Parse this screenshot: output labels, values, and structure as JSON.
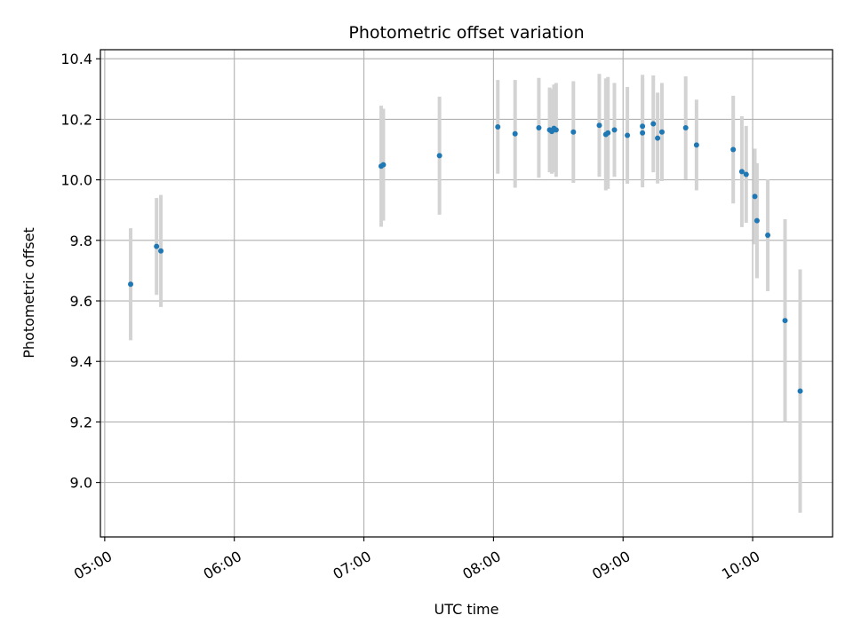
{
  "chart_data": {
    "type": "scatter",
    "title": "Photometric offset variation",
    "xlabel": "UTC time",
    "ylabel": "Photometric offset",
    "x_ticks": [
      "05:00",
      "06:00",
      "07:00",
      "08:00",
      "09:00",
      "10:00"
    ],
    "y_ticks": [
      "9.0",
      "9.2",
      "9.4",
      "9.6",
      "9.8",
      "10.0",
      "10.2",
      "10.4"
    ],
    "xlim": [
      "04:58",
      "10:37"
    ],
    "ylim": [
      8.82,
      10.43
    ],
    "grid": true,
    "colors": {
      "point": "#1f77b4",
      "errorbar": "#d3d3d3",
      "grid": "#b0b0b0"
    },
    "points": [
      {
        "t": "05:12",
        "y": 9.655,
        "err": 0.185
      },
      {
        "t": "05:24",
        "y": 9.78,
        "err": 0.16
      },
      {
        "t": "05:26",
        "y": 9.765,
        "err": 0.185
      },
      {
        "t": "07:08",
        "y": 10.045,
        "err": 0.2
      },
      {
        "t": "07:09",
        "y": 10.05,
        "err": 0.185
      },
      {
        "t": "07:35",
        "y": 10.08,
        "err": 0.195
      },
      {
        "t": "08:02",
        "y": 10.175,
        "err": 0.155
      },
      {
        "t": "08:10",
        "y": 10.152,
        "err": 0.178
      },
      {
        "t": "08:21",
        "y": 10.172,
        "err": 0.165
      },
      {
        "t": "08:26",
        "y": 10.165,
        "err": 0.14
      },
      {
        "t": "08:27",
        "y": 10.16,
        "err": 0.14
      },
      {
        "t": "08:28",
        "y": 10.17,
        "err": 0.145
      },
      {
        "t": "08:29",
        "y": 10.165,
        "err": 0.155
      },
      {
        "t": "08:37",
        "y": 10.158,
        "err": 0.168
      },
      {
        "t": "08:49",
        "y": 10.18,
        "err": 0.17
      },
      {
        "t": "08:52",
        "y": 10.15,
        "err": 0.185
      },
      {
        "t": "08:53",
        "y": 10.155,
        "err": 0.185
      },
      {
        "t": "08:56",
        "y": 10.165,
        "err": 0.155
      },
      {
        "t": "09:02",
        "y": 10.147,
        "err": 0.16
      },
      {
        "t": "09:09",
        "y": 10.155,
        "err": 0.18
      },
      {
        "t": "09:09",
        "y": 10.177,
        "err": 0.17
      },
      {
        "t": "09:14",
        "y": 10.185,
        "err": 0.16
      },
      {
        "t": "09:16",
        "y": 10.138,
        "err": 0.15
      },
      {
        "t": "09:18",
        "y": 10.158,
        "err": 0.162
      },
      {
        "t": "09:29",
        "y": 10.172,
        "err": 0.17
      },
      {
        "t": "09:34",
        "y": 10.115,
        "err": 0.15
      },
      {
        "t": "09:51",
        "y": 10.1,
        "err": 0.178
      },
      {
        "t": "09:55",
        "y": 10.027,
        "err": 0.183
      },
      {
        "t": "09:57",
        "y": 10.018,
        "err": 0.16
      },
      {
        "t": "10:01",
        "y": 9.945,
        "err": 0.158
      },
      {
        "t": "10:02",
        "y": 9.865,
        "err": 0.19
      },
      {
        "t": "10:07",
        "y": 9.817,
        "err": 0.185
      },
      {
        "t": "10:15",
        "y": 9.535,
        "err": 0.335
      },
      {
        "t": "10:22",
        "y": 9.302,
        "err": 0.402
      }
    ]
  }
}
